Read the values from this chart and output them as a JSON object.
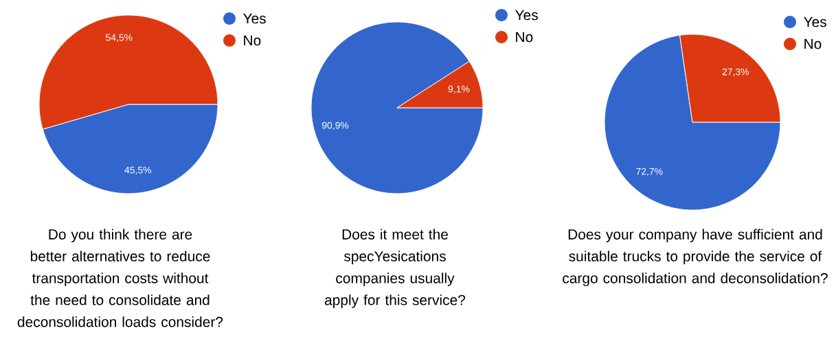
{
  "chart_data": [
    {
      "type": "pie",
      "title": "Do you think there are better alternatives to reduce transportation costs without the need to consolidate and deconsolidation loads consider?",
      "categories": [
        "Yes",
        "No"
      ],
      "values": [
        45.5,
        54.5
      ],
      "colors": [
        "#3366cc",
        "#dc3912"
      ],
      "value_labels": [
        "45,5%",
        "54,5%"
      ],
      "legend": "top right"
    },
    {
      "type": "pie",
      "title": "Does it meet the specYesications companies usually apply for this service?",
      "categories": [
        "Yes",
        "No"
      ],
      "values": [
        90.9,
        9.1
      ],
      "colors": [
        "#3366cc",
        "#dc3912"
      ],
      "value_labels": [
        "90,9%",
        "9,1%"
      ],
      "legend": "top right"
    },
    {
      "type": "pie",
      "title": "Does your company have sufficient and suitable trucks to provide the service of cargo consolidation and deconsolidation?",
      "categories": [
        "Yes",
        "No"
      ],
      "values": [
        72.7,
        27.3
      ],
      "colors": [
        "#3366cc",
        "#dc3912"
      ],
      "value_labels": [
        "72,7%",
        "27,3%"
      ],
      "legend": "top right"
    }
  ]
}
